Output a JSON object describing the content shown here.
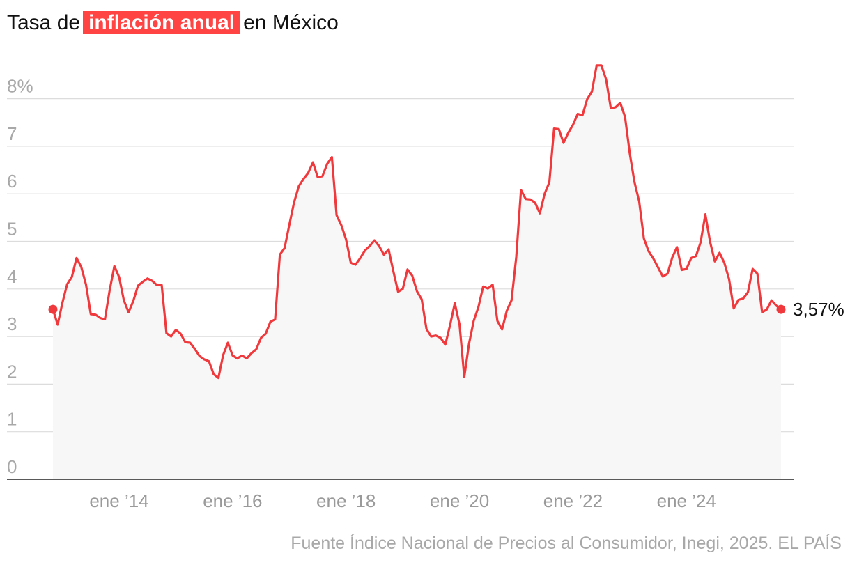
{
  "title": {
    "before": "Tasa de",
    "highlight": "inflación anual",
    "after": "en México"
  },
  "source": "Fuente Índice Nacional de Precios al Consumidor, Inegi, 2025. EL PAÍS",
  "colors": {
    "line": "#f0393c",
    "highlight_bg": "#ff4443",
    "area": "#f7f7f7"
  },
  "chart_data": {
    "type": "line",
    "title": "Tasa de inflación anual en México",
    "ylim": [
      0,
      8.8
    ],
    "yticks": [
      {
        "value": 0,
        "label": "0"
      },
      {
        "value": 1,
        "label": "1"
      },
      {
        "value": 2,
        "label": "2"
      },
      {
        "value": 3,
        "label": "3"
      },
      {
        "value": 4,
        "label": "4"
      },
      {
        "value": 5,
        "label": "5"
      },
      {
        "value": 6,
        "label": "6"
      },
      {
        "value": 7,
        "label": "7"
      },
      {
        "value": 8,
        "label": "8%"
      }
    ],
    "xticks": [
      {
        "value": "2014-01",
        "label": "ene ’14"
      },
      {
        "value": "2016-01",
        "label": "ene ’16"
      },
      {
        "value": "2018-01",
        "label": "ene ’18"
      },
      {
        "value": "2020-01",
        "label": "ene ’20"
      },
      {
        "value": "2022-01",
        "label": "ene ’22"
      },
      {
        "value": "2024-01",
        "label": "ene ’24"
      }
    ],
    "grid": true,
    "start": "2012-11",
    "end_label": "3,57%",
    "series": [
      {
        "values": [
          3.57,
          3.25,
          3.71,
          4.1,
          4.25,
          4.65,
          4.46,
          4.09,
          3.47,
          3.46,
          3.39,
          3.36,
          3.97,
          4.48,
          4.25,
          3.76,
          3.51,
          3.75,
          4.07,
          4.15,
          4.22,
          4.17,
          4.08,
          4.08,
          3.07,
          3.0,
          3.14,
          3.06,
          2.88,
          2.87,
          2.74,
          2.59,
          2.52,
          2.48,
          2.21,
          2.13,
          2.61,
          2.87,
          2.6,
          2.54,
          2.6,
          2.54,
          2.65,
          2.73,
          2.97,
          3.06,
          3.31,
          3.36,
          4.72,
          4.86,
          5.35,
          5.82,
          6.16,
          6.31,
          6.44,
          6.66,
          6.35,
          6.37,
          6.63,
          6.77,
          5.55,
          5.34,
          5.04,
          4.55,
          4.51,
          4.65,
          4.81,
          4.9,
          5.02,
          4.9,
          4.72,
          4.83,
          4.37,
          3.94,
          4.0,
          4.41,
          4.28,
          3.95,
          3.78,
          3.16,
          3.0,
          3.02,
          2.97,
          2.83,
          3.24,
          3.7,
          3.25,
          2.15,
          2.84,
          3.33,
          3.62,
          4.05,
          4.01,
          4.09,
          3.33,
          3.15,
          3.54,
          3.76,
          4.67,
          6.08,
          5.89,
          5.88,
          5.81,
          5.59,
          6.0,
          6.24,
          7.37,
          7.36,
          7.07,
          7.28,
          7.45,
          7.68,
          7.65,
          7.99,
          8.15,
          8.7,
          8.7,
          8.41,
          7.8,
          7.82,
          7.91,
          7.62,
          6.85,
          6.25,
          5.84,
          5.06,
          4.79,
          4.64,
          4.45,
          4.26,
          4.32,
          4.66,
          4.88,
          4.4,
          4.42,
          4.65,
          4.69,
          4.98,
          5.57,
          4.99,
          4.58,
          4.76,
          4.55,
          4.21,
          3.59,
          3.77,
          3.8,
          3.93,
          4.42,
          4.32,
          3.51,
          3.57,
          3.76,
          3.65,
          3.57
        ]
      }
    ]
  }
}
